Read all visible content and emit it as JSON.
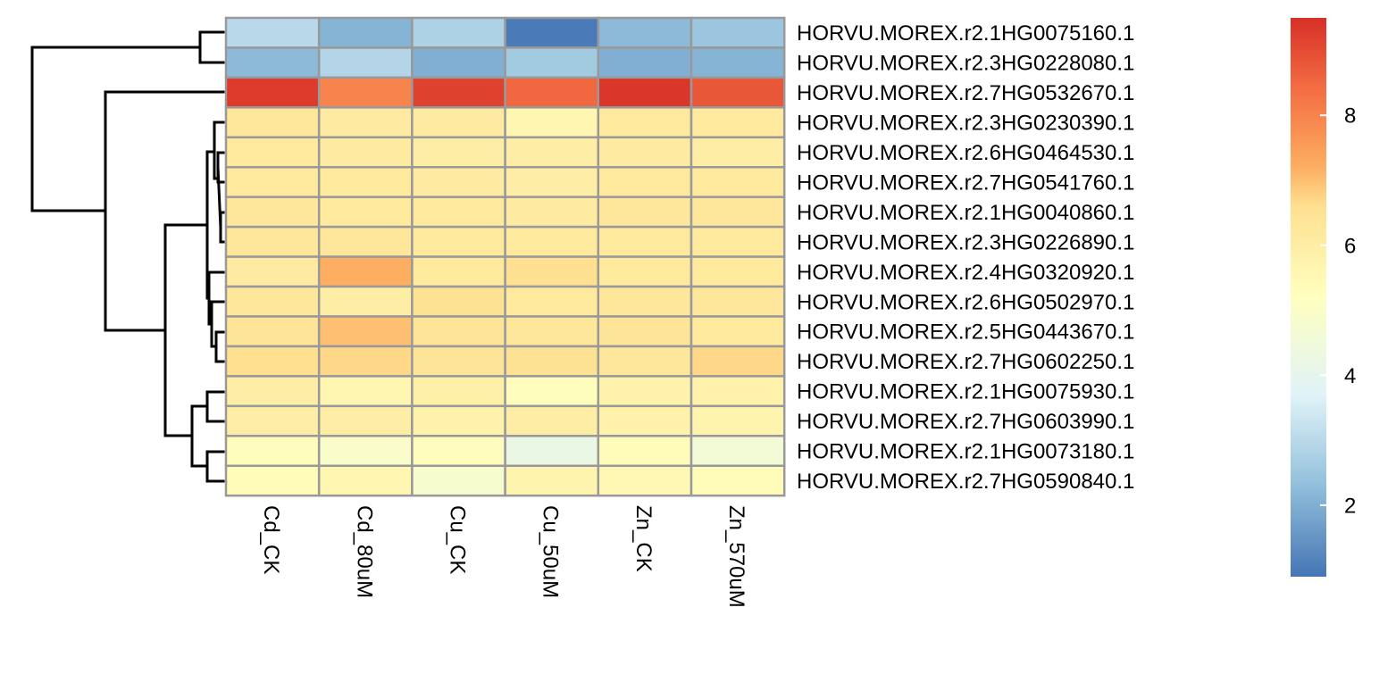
{
  "chart_data": {
    "type": "heatmap",
    "title": "",
    "columns": [
      "Cd_CK",
      "Cd_80uM",
      "Cu_CK",
      "Cu_50uM",
      "Zn_CK",
      "Zn_570uM"
    ],
    "rows": [
      "HORVU.MOREX.r2.1HG0075160.1",
      "HORVU.MOREX.r2.3HG0228080.1",
      "HORVU.MOREX.r2.7HG0532670.1",
      "HORVU.MOREX.r2.3HG0230390.1",
      "HORVU.MOREX.r2.6HG0464530.1",
      "HORVU.MOREX.r2.7HG0541760.1",
      "HORVU.MOREX.r2.1HG0040860.1",
      "HORVU.MOREX.r2.3HG0226890.1",
      "HORVU.MOREX.r2.4HG0320920.1",
      "HORVU.MOREX.r2.6HG0502970.1",
      "HORVU.MOREX.r2.5HG0443670.1",
      "HORVU.MOREX.r2.7HG0602250.1",
      "HORVU.MOREX.r2.1HG0075930.1",
      "HORVU.MOREX.r2.7HG0603990.1",
      "HORVU.MOREX.r2.1HG0073180.1",
      "HORVU.MOREX.r2.7HG0590840.1"
    ],
    "values": [
      [
        3.0,
        2.1,
        2.8,
        1.0,
        2.2,
        2.5
      ],
      [
        2.2,
        2.9,
        2.0,
        2.6,
        2.0,
        2.1
      ],
      [
        9.3,
        8.0,
        9.2,
        8.5,
        9.4,
        8.8
      ],
      [
        6.3,
        6.1,
        6.1,
        5.6,
        6.2,
        6.2
      ],
      [
        6.2,
        6.1,
        6.0,
        6.0,
        6.1,
        6.0
      ],
      [
        6.2,
        6.2,
        6.1,
        6.0,
        6.2,
        6.2
      ],
      [
        6.3,
        6.2,
        6.2,
        6.1,
        6.3,
        6.3
      ],
      [
        6.3,
        6.3,
        6.2,
        6.2,
        6.2,
        6.2
      ],
      [
        6.1,
        7.2,
        6.2,
        6.6,
        6.2,
        6.2
      ],
      [
        6.3,
        6.0,
        6.5,
        6.2,
        6.3,
        6.3
      ],
      [
        6.4,
        7.0,
        6.4,
        6.3,
        6.4,
        6.2
      ],
      [
        6.6,
        6.7,
        6.4,
        6.5,
        6.3,
        6.7
      ],
      [
        6.0,
        5.6,
        5.9,
        5.3,
        5.8,
        5.8
      ],
      [
        6.0,
        6.0,
        5.8,
        6.0,
        5.8,
        5.7
      ],
      [
        5.3,
        4.9,
        5.3,
        4.2,
        5.4,
        4.6
      ],
      [
        5.4,
        5.6,
        4.8,
        5.7,
        5.5,
        5.4
      ]
    ],
    "color_scale": {
      "range": [
        0.9,
        9.5
      ],
      "stops": [
        {
          "value": 0.9,
          "color": "#4575B4"
        },
        {
          "value": 2.3,
          "color": "#91BFDB"
        },
        {
          "value": 3.7,
          "color": "#E0F3F8"
        },
        {
          "value": 5.2,
          "color": "#FFFFBF"
        },
        {
          "value": 6.6,
          "color": "#FEE090"
        },
        {
          "value": 7.2,
          "color": "#FDAE61"
        },
        {
          "value": 8.4,
          "color": "#F46D43"
        },
        {
          "value": 9.5,
          "color": "#D73027"
        }
      ],
      "ticks": [
        2,
        4,
        6,
        8
      ]
    },
    "cell_border_color": "#999999",
    "row_dendrogram": true,
    "legend_placement": "right"
  }
}
